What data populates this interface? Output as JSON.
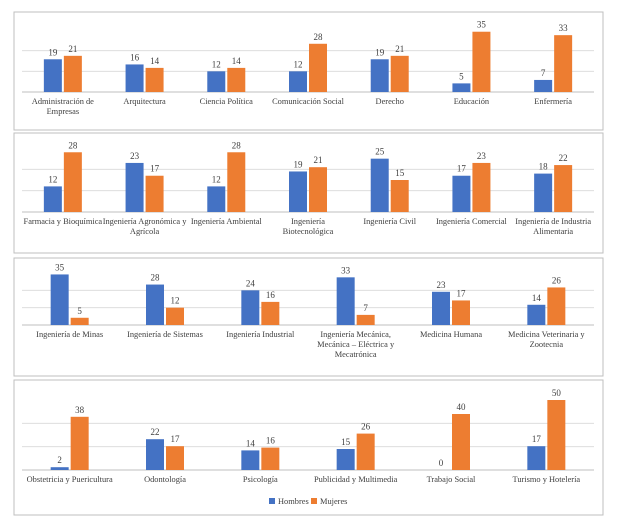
{
  "colors": {
    "hombres": "#4472C4",
    "mujeres": "#ED7D31"
  },
  "legend": {
    "hombres": "Hombres",
    "mujeres": "Mujeres"
  },
  "chart_data": [
    {
      "type": "bar",
      "series_names": [
        "Hombres",
        "Mujeres"
      ],
      "ylim": [
        0,
        36
      ],
      "grid": true,
      "categories": [
        [
          "Administración de",
          "Empresas"
        ],
        [
          "Arquitectura"
        ],
        [
          "Ciencia Política"
        ],
        [
          "Comunicación Social"
        ],
        [
          "Derecho"
        ],
        [
          "Educación"
        ],
        [
          "Enfermería"
        ]
      ],
      "series": [
        {
          "name": "Hombres",
          "values": [
            19,
            16,
            12,
            12,
            19,
            5,
            7
          ]
        },
        {
          "name": "Mujeres",
          "values": [
            21,
            14,
            14,
            28,
            21,
            35,
            33
          ]
        }
      ]
    },
    {
      "type": "bar",
      "series_names": [
        "Hombres",
        "Mujeres"
      ],
      "ylim": [
        0,
        30
      ],
      "grid": true,
      "categories": [
        [
          "Farmacia y Bioquímica"
        ],
        [
          "Ingeniería Agronómica y",
          "Agrícola"
        ],
        [
          "Ingeniería Ambiental"
        ],
        [
          "Ingeniería",
          "Biotecnológica"
        ],
        [
          "Ingeniería Civil"
        ],
        [
          "Ingeniería Comercial"
        ],
        [
          "Ingeniería de Industria",
          "Alimentaria"
        ]
      ],
      "series": [
        {
          "name": "Hombres",
          "values": [
            12,
            23,
            12,
            19,
            25,
            17,
            18
          ]
        },
        {
          "name": "Mujeres",
          "values": [
            28,
            17,
            28,
            21,
            15,
            23,
            22
          ]
        }
      ]
    },
    {
      "type": "bar",
      "series_names": [
        "Hombres",
        "Mujeres"
      ],
      "ylim": [
        0,
        36
      ],
      "grid": true,
      "categories": [
        [
          "Ingeniería de Minas"
        ],
        [
          "Ingeniería de Sistemas"
        ],
        [
          "Ingeniería Industrial"
        ],
        [
          "Ingeniería Mecánica,",
          "Mecánica – Eléctrica y",
          "Mecatrónica"
        ],
        [
          "Medicina Humana"
        ],
        [
          "Medicina Veterinaria y",
          "Zootecnia"
        ]
      ],
      "series": [
        {
          "name": "Hombres",
          "values": [
            35,
            28,
            24,
            33,
            23,
            14
          ]
        },
        {
          "name": "Mujeres",
          "values": [
            5,
            12,
            16,
            7,
            17,
            26
          ]
        }
      ]
    },
    {
      "type": "bar",
      "series_names": [
        "Hombres",
        "Mujeres"
      ],
      "ylim": [
        0,
        50
      ],
      "grid": true,
      "categories": [
        [
          "Obstetricia y Puericultura"
        ],
        [
          "Odontología"
        ],
        [
          "Psicología"
        ],
        [
          "Publicidad y Multimedia"
        ],
        [
          "Trabajo Social"
        ],
        [
          "Turismo y Hotelería"
        ]
      ],
      "series": [
        {
          "name": "Hombres",
          "values": [
            2,
            22,
            14,
            15,
            0,
            17
          ]
        },
        {
          "name": "Mujeres",
          "values": [
            38,
            17,
            16,
            26,
            40,
            50
          ]
        }
      ],
      "legend_position": "bottom"
    }
  ]
}
